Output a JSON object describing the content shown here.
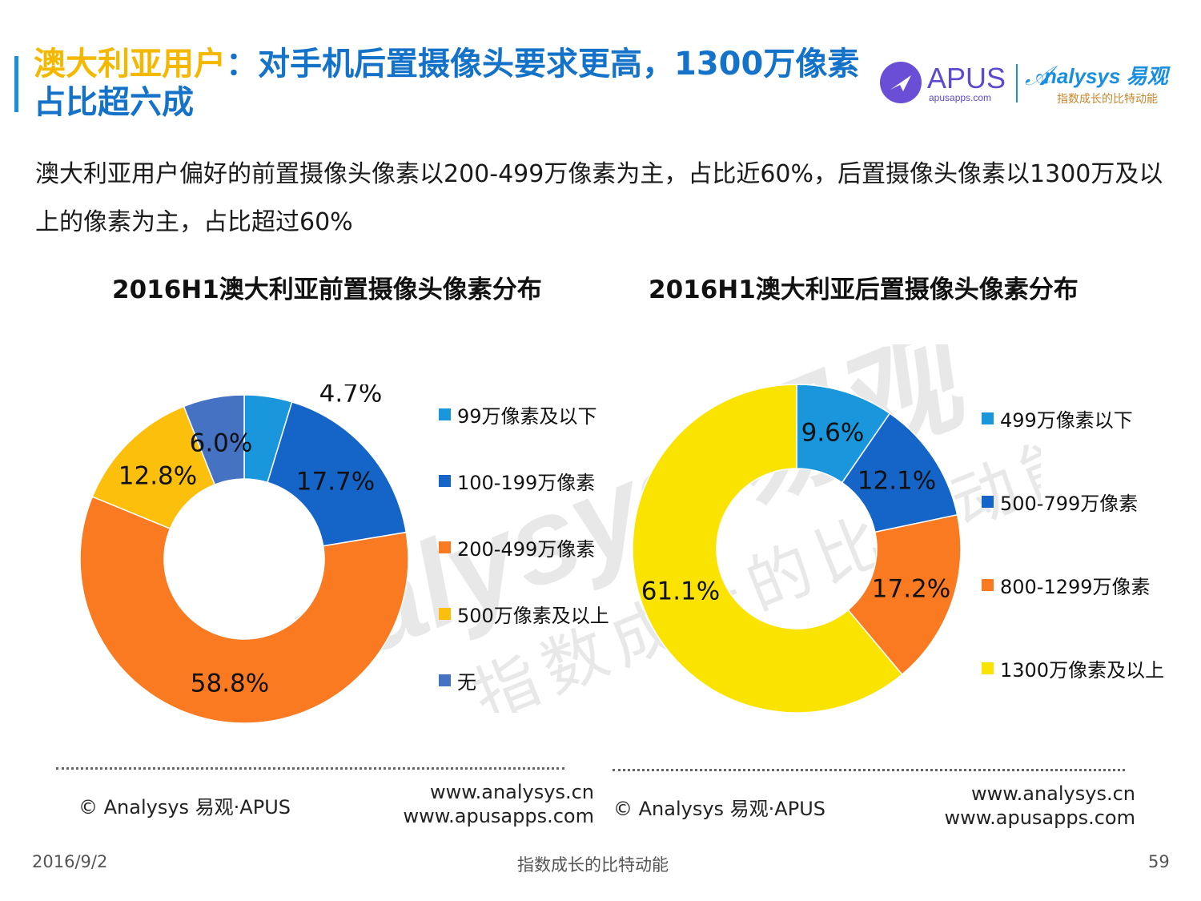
{
  "header": {
    "title_highlight": "澳大利亚用户",
    "title_rest": "：对手机后置摄像头要求更高，1300万像素占比超六成",
    "logo_apus_text": "APUS",
    "logo_apus_url": "apusapps.com",
    "logo_analysys_text": "nalysys 易观",
    "logo_analysys_slogan": "指数成长的比特动能"
  },
  "description": "澳大利亚用户偏好的前置摄像头像素以200-499万像素为主，占比近60%，后置摄像头像素以1300万及以上的像素为主，占比超过60%",
  "watermark": {
    "text1": "nalysys 易观",
    "text2": "指数成长的比特动能"
  },
  "colors": {
    "title_blue": "#1473c8",
    "title_yellow": "#f5b800"
  },
  "chart_data": [
    {
      "type": "pie",
      "title": "2016H1澳大利亚前置摄像头像素分布",
      "categories": [
        "99万像素及以下",
        "100-199万像素",
        "200-499万像素",
        "500万像素及以上",
        "无"
      ],
      "values": [
        4.7,
        17.7,
        58.8,
        12.8,
        6.0
      ],
      "labels": [
        "4.7%",
        "17.7%",
        "58.8%",
        "12.8%",
        "6.0%"
      ],
      "colors": [
        "#1a96dc",
        "#1565c8",
        "#fa7a22",
        "#fbbf0c",
        "#4672c4"
      ],
      "donut": true,
      "legend": "right"
    },
    {
      "type": "pie",
      "title": "2016H1澳大利亚后置摄像头像素分布",
      "categories": [
        "499万像素以下",
        "500-799万像素",
        "800-1299万像素",
        "1300万像素及以上"
      ],
      "values": [
        9.6,
        12.1,
        17.2,
        61.1
      ],
      "labels": [
        "9.6%",
        "12.1%",
        "17.2%",
        "61.1%"
      ],
      "colors": [
        "#1a96dc",
        "#1565c8",
        "#fa7a22",
        "#fbe300"
      ],
      "donut": true,
      "legend": "right"
    }
  ],
  "sources": [
    {
      "copyright": "© Analysys 易观·APUS",
      "url1": "www.analysys.cn",
      "url2": "www.apusapps.com"
    },
    {
      "copyright": "© Analysys 易观·APUS",
      "url1": "www.analysys.cn",
      "url2": "www.apusapps.com"
    }
  ],
  "footer": {
    "date": "2016/9/2",
    "slogan": "指数成长的比特动能",
    "page": "59"
  }
}
